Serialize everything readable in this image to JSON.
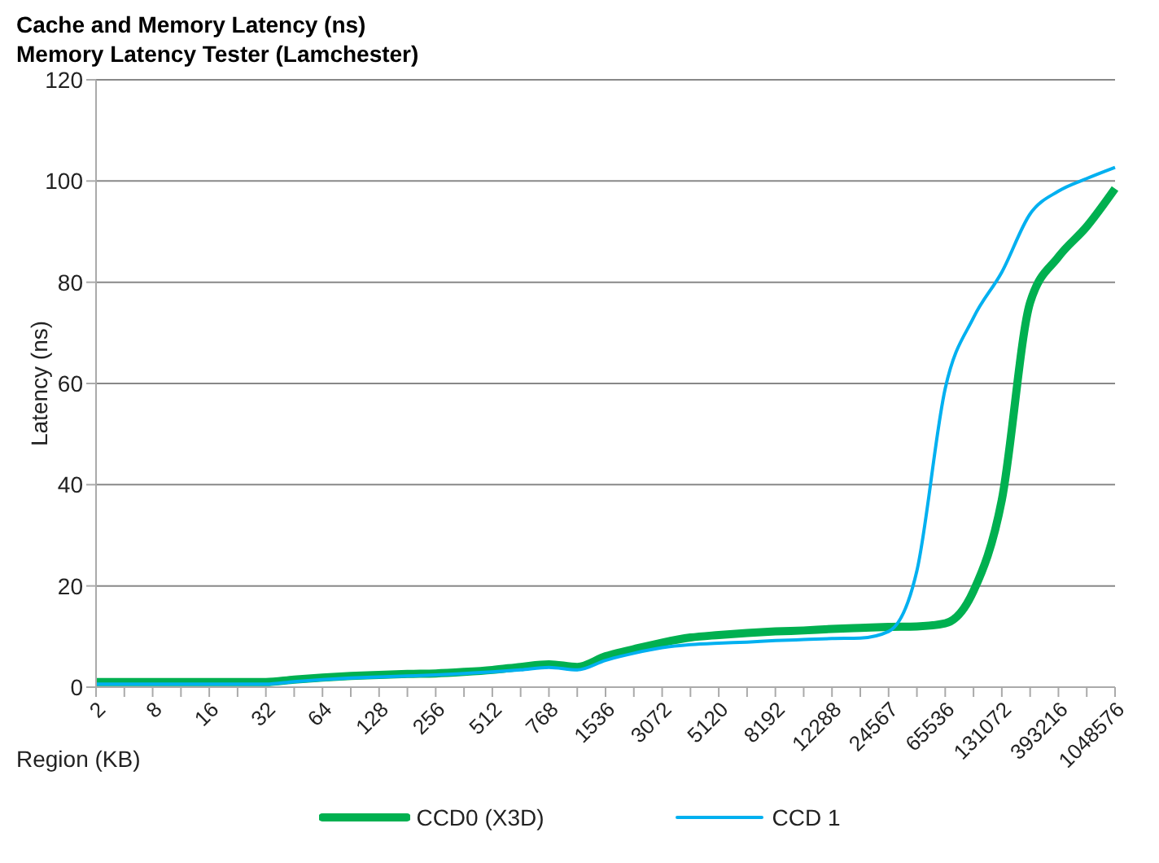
{
  "chart_data": {
    "type": "line",
    "title": "Cache and Memory Latency (ns)",
    "subtitle": "Memory Latency Tester (Lamchester)",
    "xlabel": "Region (KB)",
    "ylabel": "Latency (ns)",
    "categories": [
      "2",
      null,
      "8",
      null,
      "16",
      null,
      "32",
      null,
      "64",
      null,
      "128",
      null,
      "256",
      null,
      "512",
      null,
      "768",
      null,
      "1536",
      null,
      "3072",
      null,
      "5120",
      null,
      "8192",
      null,
      "12288",
      null,
      "24567",
      null,
      "65536",
      null,
      "131072",
      null,
      "393216",
      null,
      "1048576"
    ],
    "series": [
      {
        "name": "CCD0 (X3D)",
        "color": "#00b050",
        "values": [
          1.0,
          1.0,
          1.0,
          1.0,
          1.0,
          1.0,
          1.0,
          1.5,
          1.9,
          2.2,
          2.4,
          2.6,
          2.7,
          3.0,
          3.4,
          4.0,
          4.5,
          4.0,
          6.1,
          7.5,
          8.8,
          9.8,
          10.3,
          10.7,
          11.0,
          11.2,
          11.5,
          11.7,
          11.9,
          12.0,
          12.6,
          19,
          37,
          76,
          85,
          91,
          98.5
        ]
      },
      {
        "name": "CCD 1",
        "color": "#00b0f0",
        "values": [
          0.6,
          0.6,
          0.6,
          0.6,
          0.6,
          0.6,
          0.6,
          1.1,
          1.5,
          1.8,
          2.0,
          2.2,
          2.4,
          2.7,
          3.0,
          3.4,
          3.9,
          3.4,
          5.3,
          6.7,
          7.8,
          8.4,
          8.7,
          8.9,
          9.2,
          9.4,
          9.6,
          9.7,
          11.0,
          23,
          59,
          73,
          82,
          93.5,
          98,
          100.5,
          102.7
        ]
      }
    ],
    "ylim": [
      0,
      120
    ],
    "yticks": [
      0,
      20,
      40,
      60,
      80,
      100,
      120
    ],
    "grid": "y",
    "legend": "bottom"
  }
}
